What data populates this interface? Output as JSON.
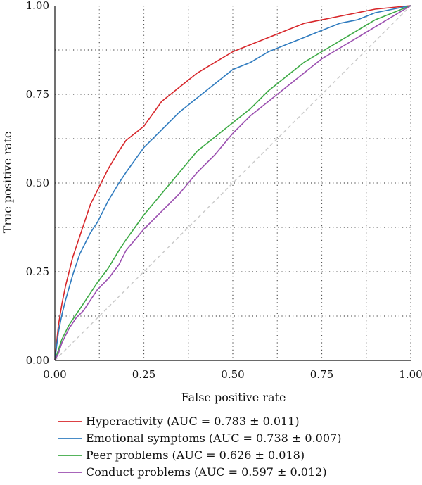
{
  "chart_data": {
    "type": "line",
    "xlabel": "False positive rate",
    "ylabel": "True positive rate",
    "xlim": [
      0,
      1
    ],
    "ylim": [
      0,
      1
    ],
    "xticks": [
      "0.00",
      "0.25",
      "0.50",
      "0.75",
      "1.00"
    ],
    "yticks": [
      "0.00",
      "0.25",
      "0.50",
      "0.75",
      "1.00"
    ],
    "tick_values": [
      0,
      0.25,
      0.5,
      0.75,
      1
    ],
    "grid": "dotted",
    "legend_position": "below",
    "reference_line": {
      "x": [
        0,
        1
      ],
      "y": [
        0,
        1
      ],
      "color": "#c8c8c8",
      "style": "dashed"
    },
    "series": [
      {
        "name": "Hyperactivity (AUC = 0.783 ± 0.011)",
        "color": "#d7262a",
        "x": [
          0,
          0.005,
          0.01,
          0.02,
          0.03,
          0.05,
          0.07,
          0.1,
          0.12,
          0.15,
          0.18,
          0.2,
          0.25,
          0.3,
          0.35,
          0.4,
          0.45,
          0.5,
          0.55,
          0.6,
          0.65,
          0.7,
          0.75,
          0.8,
          0.85,
          0.9,
          0.95,
          1.0
        ],
        "y": [
          0,
          0.05,
          0.1,
          0.16,
          0.21,
          0.29,
          0.35,
          0.44,
          0.48,
          0.54,
          0.59,
          0.62,
          0.66,
          0.73,
          0.77,
          0.81,
          0.84,
          0.87,
          0.89,
          0.91,
          0.93,
          0.95,
          0.96,
          0.97,
          0.98,
          0.99,
          0.995,
          1.0
        ]
      },
      {
        "name": "Emotional symptoms (AUC = 0.738 ± 0.007)",
        "color": "#2f7bbf",
        "x": [
          0,
          0.005,
          0.01,
          0.02,
          0.03,
          0.05,
          0.07,
          0.1,
          0.12,
          0.15,
          0.18,
          0.2,
          0.25,
          0.3,
          0.35,
          0.4,
          0.45,
          0.5,
          0.55,
          0.6,
          0.65,
          0.7,
          0.75,
          0.8,
          0.85,
          0.9,
          0.95,
          1.0
        ],
        "y": [
          0,
          0.04,
          0.08,
          0.13,
          0.17,
          0.24,
          0.3,
          0.36,
          0.39,
          0.45,
          0.5,
          0.53,
          0.6,
          0.65,
          0.7,
          0.74,
          0.78,
          0.82,
          0.84,
          0.87,
          0.89,
          0.91,
          0.93,
          0.95,
          0.96,
          0.98,
          0.99,
          1.0
        ]
      },
      {
        "name": "Peer problems (AUC = 0.626 ± 0.018)",
        "color": "#3daa45",
        "x": [
          0,
          0.01,
          0.02,
          0.04,
          0.06,
          0.08,
          0.1,
          0.12,
          0.15,
          0.18,
          0.2,
          0.25,
          0.3,
          0.35,
          0.4,
          0.45,
          0.5,
          0.55,
          0.6,
          0.65,
          0.7,
          0.75,
          0.8,
          0.85,
          0.9,
          0.95,
          1.0
        ],
        "y": [
          0,
          0.03,
          0.06,
          0.1,
          0.13,
          0.16,
          0.19,
          0.22,
          0.26,
          0.31,
          0.34,
          0.41,
          0.47,
          0.53,
          0.59,
          0.63,
          0.67,
          0.71,
          0.76,
          0.8,
          0.84,
          0.87,
          0.9,
          0.93,
          0.96,
          0.98,
          1.0
        ]
      },
      {
        "name": "Conduct problems (AUC = 0.597 ± 0.012)",
        "color": "#9b4fb0",
        "x": [
          0,
          0.01,
          0.02,
          0.04,
          0.06,
          0.08,
          0.1,
          0.12,
          0.15,
          0.18,
          0.2,
          0.25,
          0.3,
          0.35,
          0.4,
          0.45,
          0.5,
          0.55,
          0.6,
          0.65,
          0.7,
          0.75,
          0.8,
          0.85,
          0.9,
          0.95,
          1.0
        ],
        "y": [
          0,
          0.02,
          0.05,
          0.09,
          0.12,
          0.14,
          0.17,
          0.2,
          0.23,
          0.27,
          0.31,
          0.37,
          0.42,
          0.47,
          0.53,
          0.58,
          0.64,
          0.69,
          0.73,
          0.77,
          0.81,
          0.85,
          0.88,
          0.91,
          0.94,
          0.97,
          1.0
        ]
      }
    ]
  }
}
